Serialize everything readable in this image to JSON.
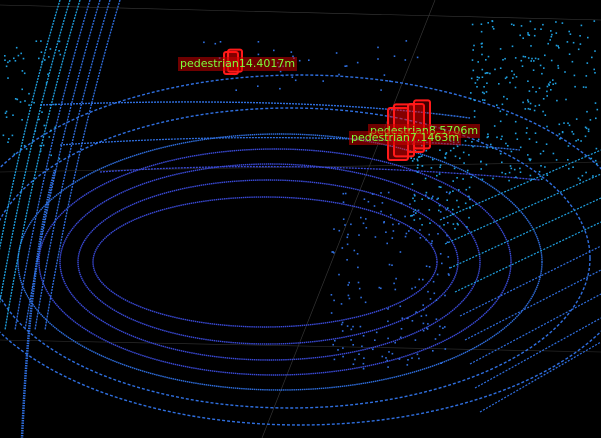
{
  "viewer": {
    "background": "#000000",
    "scan_colors": {
      "near": "#3a4ad8",
      "mid": "#2f6fe0",
      "far": "#1fa0e0"
    },
    "box_color": "#ff1a1a",
    "label_text_color": "#7dff3a",
    "label_bg_color": "#c00000",
    "detections": [
      {
        "label": "pedestrian14.4017m"
      },
      {
        "label": "pedestrian7.1463m"
      },
      {
        "label": "pedestrian8.5706m"
      }
    ]
  }
}
